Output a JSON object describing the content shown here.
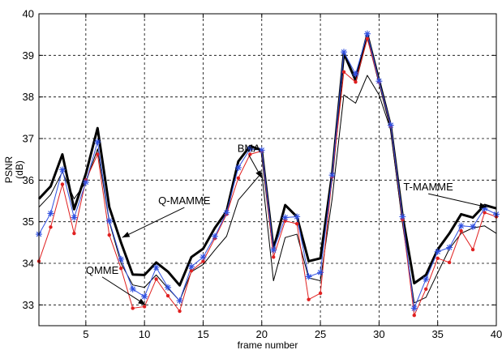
{
  "chart_data": {
    "type": "line",
    "title": "",
    "xlabel": "frame number",
    "ylabel_line1": "PSNR",
    "ylabel_line2": "(dB)",
    "xlim": [
      1,
      40
    ],
    "ylim": [
      32.5,
      40
    ],
    "grid": true,
    "grid_style": "dashed",
    "x_ticks": [
      5,
      10,
      15,
      20,
      25,
      30,
      35,
      40
    ],
    "y_ticks": [
      33,
      34,
      35,
      36,
      37,
      38,
      39,
      40
    ],
    "x": [
      1,
      2,
      3,
      4,
      5,
      6,
      7,
      8,
      9,
      10,
      11,
      12,
      13,
      14,
      15,
      16,
      17,
      18,
      19,
      20,
      21,
      22,
      23,
      24,
      25,
      26,
      27,
      28,
      29,
      30,
      31,
      32,
      33,
      34,
      35,
      36,
      37,
      38,
      39,
      40
    ],
    "series": [
      {
        "name": "",
        "color": "#000000",
        "stroke_width": 3,
        "marker": "none",
        "values": [
          35.55,
          35.85,
          36.62,
          35.3,
          36.15,
          37.25,
          35.35,
          34.5,
          33.73,
          33.72,
          34.02,
          33.8,
          33.47,
          34.15,
          34.35,
          34.85,
          35.25,
          36.45,
          36.82,
          36.72,
          34.35,
          35.4,
          35.12,
          34.05,
          34.12,
          36.15,
          39.05,
          38.4,
          39.5,
          38.4,
          37.3,
          35.15,
          33.52,
          33.72,
          34.33,
          34.72,
          35.18,
          35.1,
          35.4,
          35.32
        ]
      },
      {
        "name": "",
        "color": "#000000",
        "stroke_width": 1,
        "marker": "none",
        "values": [
          35.35,
          35.65,
          36.2,
          35.55,
          35.95,
          36.75,
          35.0,
          34.0,
          33.48,
          33.42,
          33.72,
          33.4,
          33.1,
          33.8,
          33.97,
          34.32,
          34.65,
          35.52,
          35.85,
          36.18,
          33.58,
          34.62,
          34.7,
          33.65,
          33.58,
          35.55,
          38.05,
          37.85,
          38.52,
          38.05,
          37.2,
          34.95,
          33.05,
          33.18,
          33.77,
          34.35,
          34.72,
          34.85,
          34.9,
          34.72
        ]
      },
      {
        "name": "",
        "color": "#e02020",
        "stroke_width": 1,
        "marker": "dot",
        "values": [
          34.05,
          34.87,
          35.9,
          34.72,
          36.0,
          36.62,
          34.68,
          33.88,
          32.92,
          32.96,
          33.62,
          33.22,
          32.85,
          33.82,
          34.05,
          34.6,
          35.18,
          36.05,
          36.62,
          36.7,
          34.15,
          35.02,
          34.95,
          33.13,
          33.28,
          36.08,
          38.6,
          38.36,
          39.4,
          38.36,
          37.3,
          35.05,
          32.75,
          33.38,
          34.12,
          34.02,
          34.78,
          34.33,
          35.22,
          35.12
        ]
      },
      {
        "name": "",
        "color": "#3050e0",
        "stroke_width": 1,
        "marker": "star",
        "values": [
          34.7,
          35.2,
          36.25,
          35.1,
          35.95,
          36.92,
          35.02,
          34.1,
          33.38,
          33.2,
          33.9,
          33.42,
          33.1,
          33.92,
          34.15,
          34.65,
          35.22,
          36.3,
          36.75,
          36.72,
          34.32,
          35.1,
          35.12,
          33.68,
          33.78,
          36.12,
          39.08,
          38.55,
          39.52,
          38.38,
          37.32,
          35.12,
          32.92,
          33.62,
          34.28,
          34.38,
          34.9,
          34.88,
          35.32,
          35.18
        ]
      }
    ],
    "annotations": [
      {
        "label": "BMA",
        "text_x": 18.9,
        "text_y": 36.68,
        "arrow_to_x": 20.0,
        "arrow_to_y": 36.05
      },
      {
        "label": "Q-MAMME",
        "text_x": 13.4,
        "text_y": 35.42,
        "arrow_to_x": 8.1,
        "arrow_to_y": 34.62
      },
      {
        "label": "QMME",
        "text_x": 6.4,
        "text_y": 33.75,
        "arrow_to_x": 10.1,
        "arrow_to_y": 33.0
      },
      {
        "label": "T-MAMME",
        "text_x": 34.2,
        "text_y": 35.75,
        "arrow_to_x": 39.2,
        "arrow_to_y": 35.35
      }
    ]
  }
}
